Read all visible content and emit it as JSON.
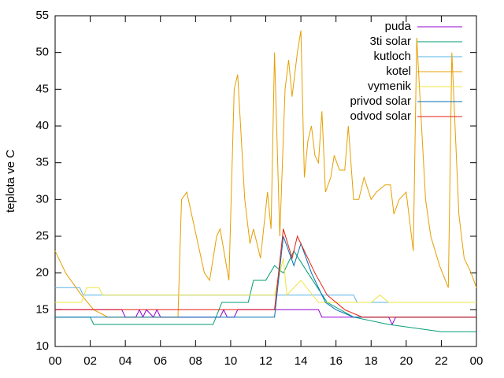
{
  "chart_data": {
    "type": "line",
    "y_label": "teplota ve C",
    "xlim": [
      0,
      24
    ],
    "xticks": [
      {
        "value": 0,
        "label": "00"
      },
      {
        "value": 2,
        "label": "02"
      },
      {
        "value": 4,
        "label": "04"
      },
      {
        "value": 6,
        "label": "06"
      },
      {
        "value": 8,
        "label": "08"
      },
      10,
      12,
      14,
      16,
      18,
      20,
      22,
      {
        "value": 24,
        "label": "00"
      }
    ],
    "ylim": [
      10,
      55
    ],
    "yticks": [
      10,
      15,
      20,
      25,
      30,
      35,
      40,
      45,
      50,
      55
    ],
    "legend": "top-right",
    "series": [
      {
        "name": "puda",
        "color": "#9400d3",
        "x": [
          0,
          3.8,
          4.0,
          4.6,
          4.8,
          5.0,
          5.2,
          5.6,
          5.8,
          6.0,
          9.4,
          9.6,
          9.8,
          10.2,
          10.4,
          12.5,
          15.0,
          15.2,
          19.0,
          19.2,
          19.4,
          24
        ],
        "values": [
          15,
          15,
          14,
          14,
          15,
          14,
          15,
          14,
          15,
          14,
          14,
          15,
          14,
          14,
          15,
          15,
          15,
          14,
          14,
          13,
          14,
          14
        ]
      },
      {
        "name": "3ti solar",
        "color": "#009e73",
        "x": [
          0,
          2.0,
          2.2,
          9.0,
          9.5,
          11.0,
          11.3,
          12.0,
          12.5,
          13.0,
          13.6,
          14.4,
          15.5,
          17.0,
          19.0,
          22.0,
          24
        ],
        "values": [
          14,
          14,
          13,
          13,
          16,
          16,
          19,
          19,
          21,
          20,
          23,
          20,
          16,
          14,
          13,
          12,
          12
        ]
      },
      {
        "name": "kutloch",
        "color": "#56b4e9",
        "x": [
          0,
          1.4,
          1.6,
          17.0,
          17.2,
          24
        ],
        "values": [
          18,
          18,
          17,
          17,
          16,
          16
        ]
      },
      {
        "name": "kotel",
        "color": "#e69f00",
        "x": [
          0,
          0.6,
          1.5,
          2.2,
          3.0,
          7.0,
          7.2,
          7.5,
          8.5,
          8.8,
          9.2,
          9.4,
          9.9,
          10.2,
          10.4,
          10.8,
          11.1,
          11.3,
          11.7,
          12.1,
          12.3,
          12.5,
          12.8,
          13.1,
          13.3,
          13.5,
          13.8,
          14.0,
          14.2,
          14.4,
          14.6,
          14.8,
          15.0,
          15.2,
          15.4,
          15.7,
          15.9,
          16.2,
          16.5,
          16.7,
          17.0,
          17.3,
          17.6,
          18.0,
          18.3,
          18.8,
          19.1,
          19.3,
          19.6,
          20.0,
          20.4,
          20.6,
          21.1,
          21.4,
          21.9,
          22.4,
          22.6,
          23.0,
          23.3,
          23.7,
          24
        ],
        "values": [
          23,
          20,
          17,
          15,
          14,
          14,
          30,
          31,
          20,
          19,
          25,
          26,
          19,
          45,
          47,
          30,
          24,
          26,
          22,
          31,
          26,
          50,
          25,
          45,
          49,
          44,
          50,
          53,
          33,
          38,
          40,
          36,
          35,
          42,
          31,
          33,
          36,
          34,
          34,
          40,
          30,
          30,
          33,
          30,
          31,
          32,
          32,
          28,
          30,
          31,
          23,
          52,
          30,
          25,
          21,
          18,
          50,
          28,
          22,
          20,
          18
        ]
      },
      {
        "name": "vymenik",
        "color": "#f0e442",
        "x": [
          0,
          1.5,
          1.8,
          2.5,
          2.7,
          12.5,
          13.0,
          13.2,
          14.0,
          15.0,
          18.0,
          18.5,
          19.0,
          24
        ],
        "values": [
          16,
          16,
          18,
          18,
          17,
          17,
          22,
          17,
          19,
          16,
          16,
          17,
          16,
          16
        ]
      },
      {
        "name": "privod solar",
        "color": "#0072b2",
        "x": [
          0,
          12.5,
          13.0,
          13.6,
          14.0,
          14.6,
          15.4,
          16.0,
          17.0,
          24
        ],
        "values": [
          14,
          14,
          25,
          21,
          24,
          20,
          16,
          15,
          14,
          14
        ]
      },
      {
        "name": "odvod solar",
        "color": "#e51e10",
        "x": [
          0,
          12.5,
          13.0,
          13.5,
          13.8,
          14.8,
          15.5,
          16.5,
          17.5,
          24
        ],
        "values": [
          15,
          15,
          26,
          22,
          25,
          20,
          17,
          15,
          14,
          14
        ]
      }
    ]
  }
}
